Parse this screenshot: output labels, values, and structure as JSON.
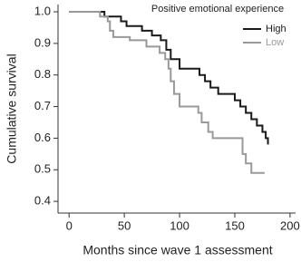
{
  "chart_data": {
    "type": "line",
    "step": "post",
    "legend_title": "Positive emotional experience",
    "xlabel": "Months since wave 1 assessment",
    "ylabel": "Cumulative survival",
    "xlim": [
      -10,
      205
    ],
    "ylim": [
      0.363,
      1.023
    ],
    "xticks": [
      0,
      50,
      100,
      150,
      200
    ],
    "yticks": [
      {
        "value": 1,
        "label": "1.0"
      },
      0.9,
      0.8,
      0.7,
      0.6,
      0.5,
      0.4
    ],
    "series": [
      {
        "name": "High",
        "color": "#1a1a1a",
        "x": [
          0,
          32,
          47,
          52,
          66,
          75,
          83,
          88,
          92,
          100,
          118,
          123,
          128,
          135,
          150,
          155,
          160,
          165,
          170,
          175,
          178,
          180
        ],
        "values": [
          1.0,
          0.985,
          0.97,
          0.955,
          0.94,
          0.925,
          0.91,
          0.88,
          0.85,
          0.82,
          0.8,
          0.78,
          0.76,
          0.74,
          0.72,
          0.7,
          0.68,
          0.66,
          0.64,
          0.62,
          0.6,
          0.58
        ]
      },
      {
        "name": "Low",
        "color": "#999999",
        "x": [
          0,
          28,
          35,
          37,
          40,
          55,
          70,
          82,
          87,
          90,
          92,
          95,
          100,
          117,
          120,
          126,
          130,
          157,
          160,
          165,
          177
        ],
        "values": [
          1.0,
          0.985,
          0.97,
          0.94,
          0.92,
          0.91,
          0.89,
          0.87,
          0.85,
          0.82,
          0.78,
          0.74,
          0.7,
          0.68,
          0.65,
          0.62,
          0.6,
          0.55,
          0.52,
          0.49,
          0.49
        ]
      }
    ]
  }
}
